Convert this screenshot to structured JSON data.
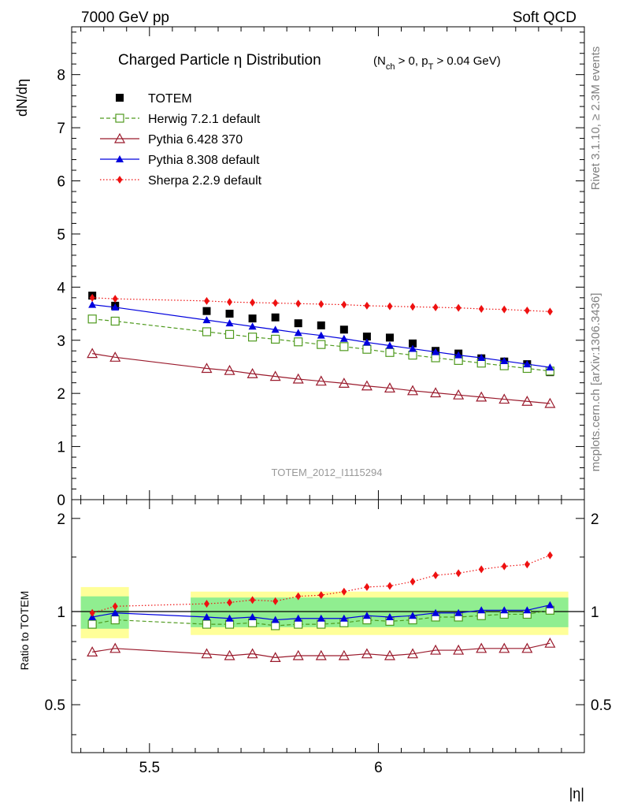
{
  "header": {
    "left": "7000 GeV pp",
    "right": "Soft QCD"
  },
  "title": {
    "main": "Charged Particle η Distribution",
    "sub": "(N",
    "sub_ch": "ch",
    "sub_mid": " > 0, p",
    "sub_t": "T",
    "sub_end": " > 0.04 GeV)"
  },
  "side_text": {
    "rivet": "Rivet 3.1.10, ≥ 2.3M events",
    "mcplots": "mcplots.cern.ch [arXiv:1306.3436]"
  },
  "watermark": "TOTEM_2012_I1115294",
  "chart_data": [
    {
      "type": "scatter",
      "panel": "main",
      "ylabel": "dN/dη",
      "xlabel": "|η|",
      "xlim": [
        5.33,
        6.45
      ],
      "ylim": [
        0,
        8.9
      ],
      "y_ticks": [
        "0",
        "1",
        "2",
        "3",
        "4",
        "5",
        "6",
        "7",
        "8"
      ],
      "x_ticks": [
        "5.5",
        "6"
      ],
      "legend_position": "top-left",
      "x": [
        5.375,
        5.425,
        5.625,
        5.675,
        5.725,
        5.775,
        5.825,
        5.875,
        5.925,
        5.975,
        6.025,
        6.075,
        6.125,
        6.175,
        6.225,
        6.275,
        6.325,
        6.375
      ],
      "series": [
        {
          "name": "TOTEM",
          "color": "#000000",
          "marker": "square-filled",
          "values": [
            3.84,
            3.65,
            3.55,
            3.5,
            3.41,
            3.43,
            3.32,
            3.28,
            3.2,
            3.07,
            3.05,
            2.94,
            2.8,
            2.75,
            2.66,
            2.6,
            2.55,
            2.4
          ]
        },
        {
          "name": "Herwig 7.2.1 default",
          "color": "#4f9a1e",
          "marker": "square-open",
          "line": "dashed",
          "values": [
            3.4,
            3.36,
            3.16,
            3.11,
            3.06,
            3.02,
            2.97,
            2.92,
            2.88,
            2.83,
            2.77,
            2.72,
            2.67,
            2.62,
            2.57,
            2.52,
            2.47,
            2.42
          ]
        },
        {
          "name": "Pythia 6.428 370",
          "color": "#9a1a2c",
          "marker": "triangle-open",
          "line": "solid",
          "values": [
            2.75,
            2.68,
            2.47,
            2.43,
            2.37,
            2.32,
            2.27,
            2.23,
            2.19,
            2.14,
            2.1,
            2.05,
            2.01,
            1.97,
            1.93,
            1.89,
            1.85,
            1.81
          ]
        },
        {
          "name": "Pythia 8.308 default",
          "color": "#0000dd",
          "marker": "triangle-filled",
          "line": "solid",
          "values": [
            3.67,
            3.62,
            3.38,
            3.32,
            3.26,
            3.2,
            3.14,
            3.09,
            3.03,
            2.96,
            2.9,
            2.84,
            2.78,
            2.72,
            2.67,
            2.61,
            2.55,
            2.49
          ]
        },
        {
          "name": "Sherpa 2.2.9 default",
          "color": "#ee1111",
          "marker": "diamond-filled",
          "line": "dotted",
          "values": [
            3.8,
            3.78,
            3.74,
            3.72,
            3.71,
            3.7,
            3.69,
            3.68,
            3.67,
            3.65,
            3.64,
            3.63,
            3.62,
            3.61,
            3.59,
            3.58,
            3.56,
            3.54
          ]
        }
      ]
    },
    {
      "type": "scatter",
      "panel": "ratio",
      "ylabel": "Ratio to TOTEM",
      "xlabel": "|η|",
      "xlim": [
        5.33,
        6.45
      ],
      "ylim": [
        0.35,
        2.3
      ],
      "y_ticks": [
        "0.5",
        "1",
        "2"
      ],
      "x_ticks": [
        "5.5",
        "6"
      ],
      "bands": {
        "inner_color": "#90ee90",
        "outer_color": "#ffff99",
        "segments": [
          {
            "x_from": 5.35,
            "x_to": 5.455,
            "inner": [
              0.88,
              1.12
            ],
            "outer": [
              0.82,
              1.2
            ]
          },
          {
            "x_from": 5.59,
            "x_to": 6.415,
            "inner": [
              0.89,
              1.11
            ],
            "outer": [
              0.84,
              1.16
            ]
          }
        ]
      },
      "x": [
        5.375,
        5.425,
        5.625,
        5.675,
        5.725,
        5.775,
        5.825,
        5.875,
        5.925,
        5.975,
        6.025,
        6.075,
        6.125,
        6.175,
        6.225,
        6.275,
        6.325,
        6.375
      ],
      "series": [
        {
          "name": "Herwig 7.2.1 default",
          "color": "#4f9a1e",
          "marker": "square-open",
          "line": "dashed",
          "values": [
            0.91,
            0.94,
            0.91,
            0.91,
            0.92,
            0.9,
            0.91,
            0.91,
            0.92,
            0.94,
            0.93,
            0.94,
            0.96,
            0.96,
            0.97,
            0.98,
            0.98,
            1.01
          ]
        },
        {
          "name": "Pythia 6.428 370",
          "color": "#9a1a2c",
          "marker": "triangle-open",
          "line": "solid",
          "values": [
            0.74,
            0.76,
            0.73,
            0.72,
            0.73,
            0.71,
            0.72,
            0.72,
            0.72,
            0.73,
            0.72,
            0.73,
            0.75,
            0.75,
            0.76,
            0.76,
            0.76,
            0.79
          ]
        },
        {
          "name": "Pythia 8.308 default",
          "color": "#0000dd",
          "marker": "triangle-filled",
          "line": "solid",
          "values": [
            0.96,
            0.99,
            0.96,
            0.95,
            0.96,
            0.94,
            0.95,
            0.95,
            0.95,
            0.97,
            0.96,
            0.97,
            0.99,
            0.99,
            1.01,
            1.01,
            1.01,
            1.05
          ]
        },
        {
          "name": "Sherpa 2.2.9 default",
          "color": "#ee1111",
          "marker": "diamond-filled",
          "line": "dotted",
          "values": [
            0.99,
            1.04,
            1.06,
            1.07,
            1.09,
            1.08,
            1.12,
            1.13,
            1.16,
            1.2,
            1.21,
            1.25,
            1.31,
            1.33,
            1.37,
            1.4,
            1.42,
            1.52
          ]
        }
      ]
    }
  ]
}
